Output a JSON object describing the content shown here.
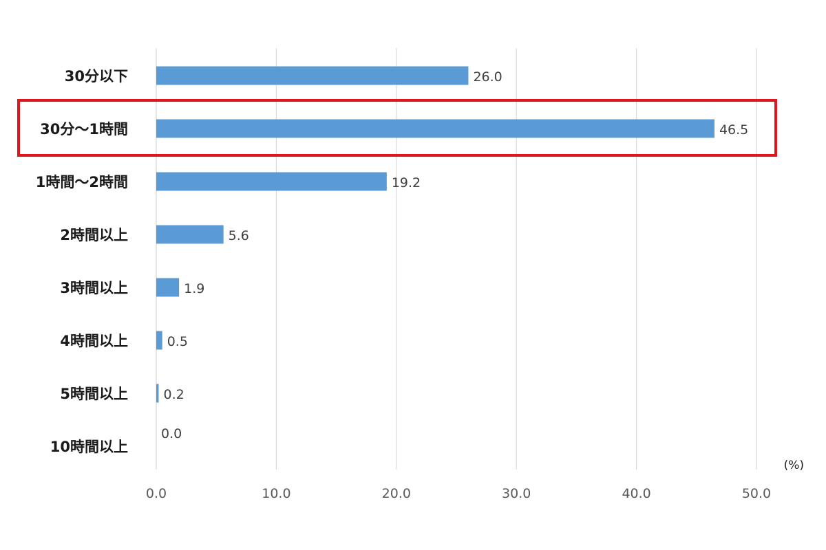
{
  "chart_data": {
    "type": "bar",
    "orientation": "horizontal",
    "categories": [
      "30分以下",
      "30分～1時間",
      "1時間～2時間",
      "2時間以上",
      "3時間以上",
      "4時間以上",
      "5時間以上",
      "10時間以上"
    ],
    "values": [
      26.0,
      46.5,
      19.2,
      5.6,
      1.9,
      0.5,
      0.2,
      0.0
    ],
    "data_labels": [
      "26.0",
      "46.5",
      "19.2",
      "5.6",
      "1.9",
      "0.5",
      "0.2",
      "0.0"
    ],
    "x_ticks": [
      "0.0",
      "10.0",
      "20.0",
      "30.0",
      "40.0",
      "50.0"
    ],
    "xlim": [
      0,
      50
    ],
    "unit": "(%)",
    "grid": "vertical",
    "highlighted_category": "30分～1時間",
    "colors": {
      "bar": "#5b9bd5",
      "highlight_box": "#e0161f",
      "grid": "#d9d9d9"
    }
  }
}
